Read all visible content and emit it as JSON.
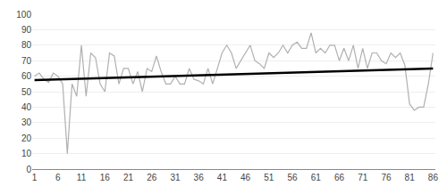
{
  "chart_data": {
    "type": "line",
    "x": [
      1,
      2,
      3,
      4,
      5,
      6,
      7,
      8,
      9,
      10,
      11,
      12,
      13,
      14,
      15,
      16,
      17,
      18,
      19,
      20,
      21,
      22,
      23,
      24,
      25,
      26,
      27,
      28,
      29,
      30,
      31,
      32,
      33,
      34,
      35,
      36,
      37,
      38,
      39,
      40,
      41,
      42,
      43,
      44,
      45,
      46,
      47,
      48,
      49,
      50,
      51,
      52,
      53,
      54,
      55,
      56,
      57,
      58,
      59,
      60,
      61,
      62,
      63,
      64,
      65,
      66,
      67,
      68,
      69,
      70,
      71,
      72,
      73,
      74,
      75,
      76,
      77,
      78,
      79,
      80,
      81,
      82,
      83,
      84,
      85,
      86
    ],
    "series": [
      {
        "type": "line",
        "color": "#b0b0b0",
        "values": [
          60,
          62,
          58,
          56,
          62,
          60,
          55,
          10,
          55,
          47,
          80,
          47,
          75,
          72,
          55,
          50,
          75,
          73,
          55,
          65,
          65,
          55,
          63,
          50,
          65,
          63,
          73,
          63,
          55,
          55,
          60,
          55,
          55,
          65,
          58,
          57,
          55,
          65,
          55,
          65,
          75,
          80,
          75,
          65,
          70,
          75,
          80,
          70,
          68,
          65,
          75,
          72,
          75,
          80,
          75,
          80,
          82,
          78,
          78,
          88,
          75,
          78,
          75,
          80,
          80,
          70,
          78,
          70,
          80,
          65,
          78,
          65,
          75,
          75,
          70,
          68,
          75,
          72,
          75,
          67,
          42,
          38,
          40,
          40,
          55,
          75
        ]
      },
      {
        "type": "line",
        "color": "#000000",
        "x": [
          1,
          86
        ],
        "values": [
          57.5,
          65.0
        ]
      }
    ],
    "xlim": [
      0.5,
      86.5
    ],
    "xticks": [
      1,
      6,
      11,
      16,
      21,
      26,
      31,
      36,
      41,
      46,
      51,
      56,
      61,
      66,
      71,
      76,
      81,
      86
    ],
    "ylim": [
      0,
      100
    ],
    "yticks": [
      0,
      10,
      20,
      30,
      40,
      50,
      60,
      70,
      80,
      90,
      100
    ],
    "grid": "y"
  }
}
